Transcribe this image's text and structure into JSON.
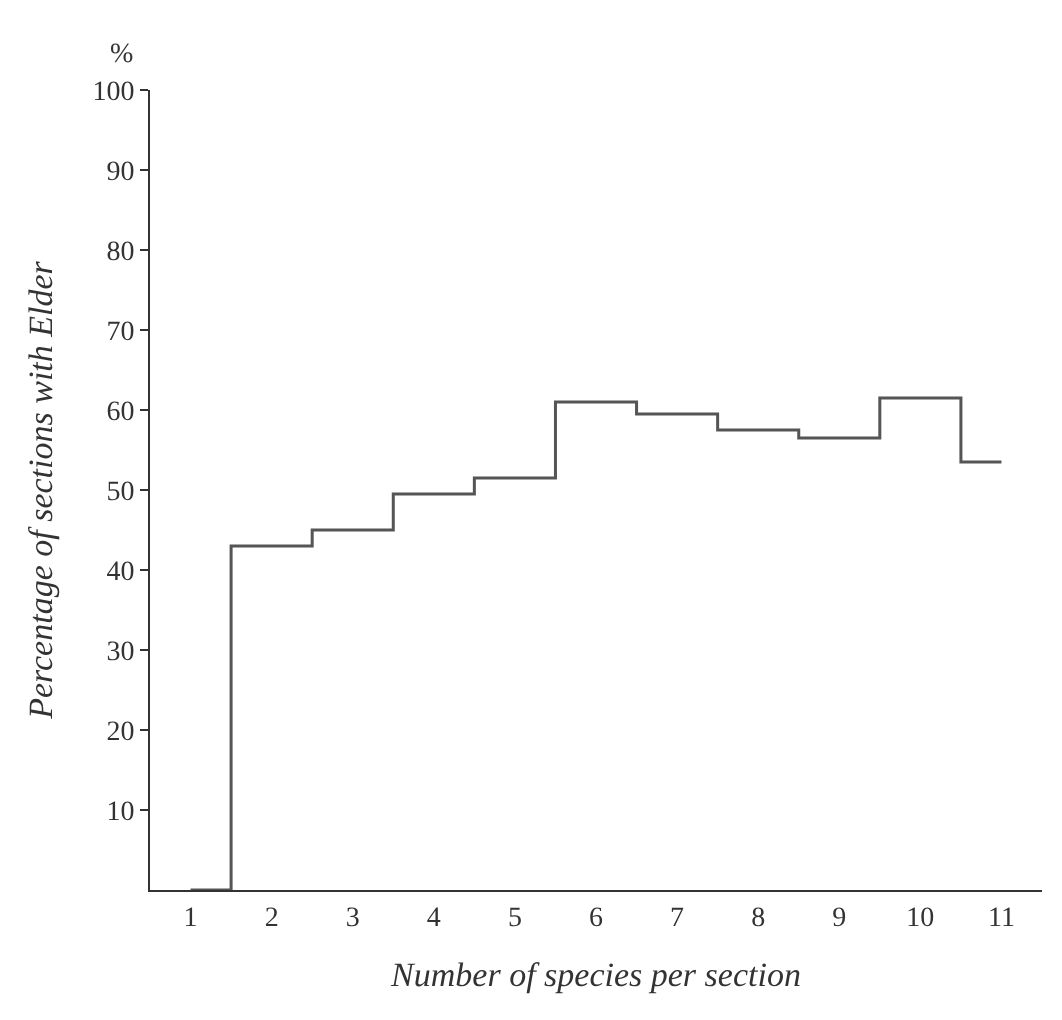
{
  "chart_data": {
    "type": "step",
    "xlabel": "Number of species per section",
    "ylabel": "Percentage of sections with Elder",
    "annotations": [
      "%"
    ],
    "categories": [
      "1",
      "2",
      "3",
      "4",
      "5",
      "6",
      "7",
      "8",
      "9",
      "10",
      "11"
    ],
    "series": [
      {
        "color": "#555555",
        "values": [
          0,
          43,
          45,
          49.5,
          51.5,
          61,
          59.5,
          57.5,
          56.5,
          61.5,
          53.5
        ]
      }
    ],
    "ylim": [
      0,
      100
    ],
    "yticks": [
      10,
      20,
      30,
      40,
      50,
      60,
      70,
      80,
      90,
      100
    ]
  }
}
